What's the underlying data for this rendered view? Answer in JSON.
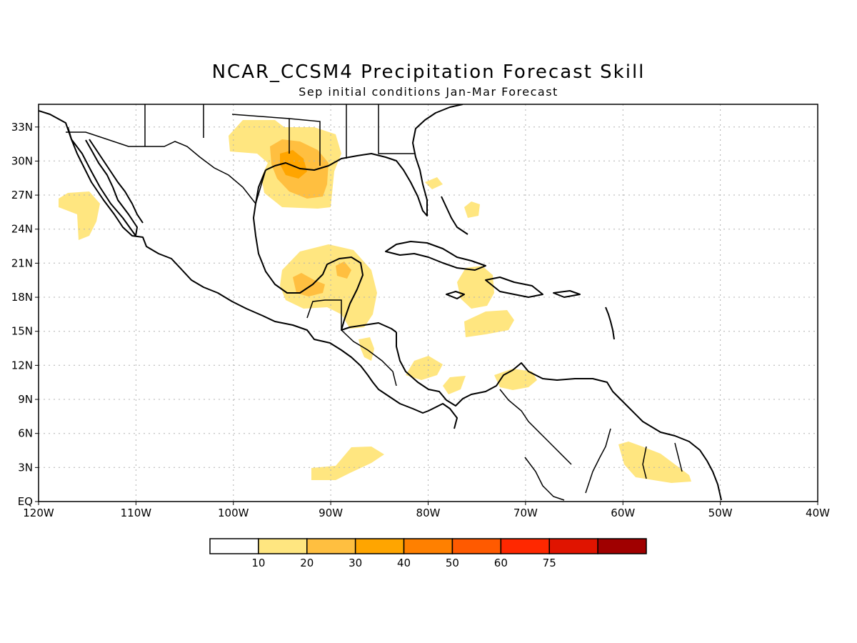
{
  "title": "NCAR_CCSM4 Precipitation Forecast Skill",
  "subtitle": "Sep initial conditions  Jan-Mar Forecast",
  "map": {
    "lon_range": [
      -120,
      -40
    ],
    "lat_range": [
      0,
      35
    ],
    "grid": "dotted",
    "lon_labels": [
      {
        "lon": -120,
        "text": "120W"
      },
      {
        "lon": -110,
        "text": "110W"
      },
      {
        "lon": -100,
        "text": "100W"
      },
      {
        "lon": -90,
        "text": "90W"
      },
      {
        "lon": -80,
        "text": "80W"
      },
      {
        "lon": -70,
        "text": "70W"
      },
      {
        "lon": -60,
        "text": "60W"
      },
      {
        "lon": -50,
        "text": "50W"
      },
      {
        "lon": -40,
        "text": "40W"
      }
    ],
    "lat_labels": [
      {
        "lat": 0,
        "text": "EQ"
      },
      {
        "lat": 3,
        "text": "3N"
      },
      {
        "lat": 6,
        "text": "6N"
      },
      {
        "lat": 9,
        "text": "9N"
      },
      {
        "lat": 12,
        "text": "12N"
      },
      {
        "lat": 15,
        "text": "15N"
      },
      {
        "lat": 18,
        "text": "18N"
      },
      {
        "lat": 21,
        "text": "21N"
      },
      {
        "lat": 24,
        "text": "24N"
      },
      {
        "lat": 27,
        "text": "27N"
      },
      {
        "lat": 30,
        "text": "30N"
      },
      {
        "lat": 33,
        "text": "33N"
      }
    ]
  },
  "colorbar": {
    "colors": [
      "#ffffff",
      "#ffe680",
      "#ffbf40",
      "#ffa500",
      "#ff8000",
      "#ff5a00",
      "#ff2800",
      "#e01400",
      "#a00000"
    ],
    "labels": [
      "10",
      "20",
      "30",
      "40",
      "50",
      "60",
      "75"
    ]
  }
}
